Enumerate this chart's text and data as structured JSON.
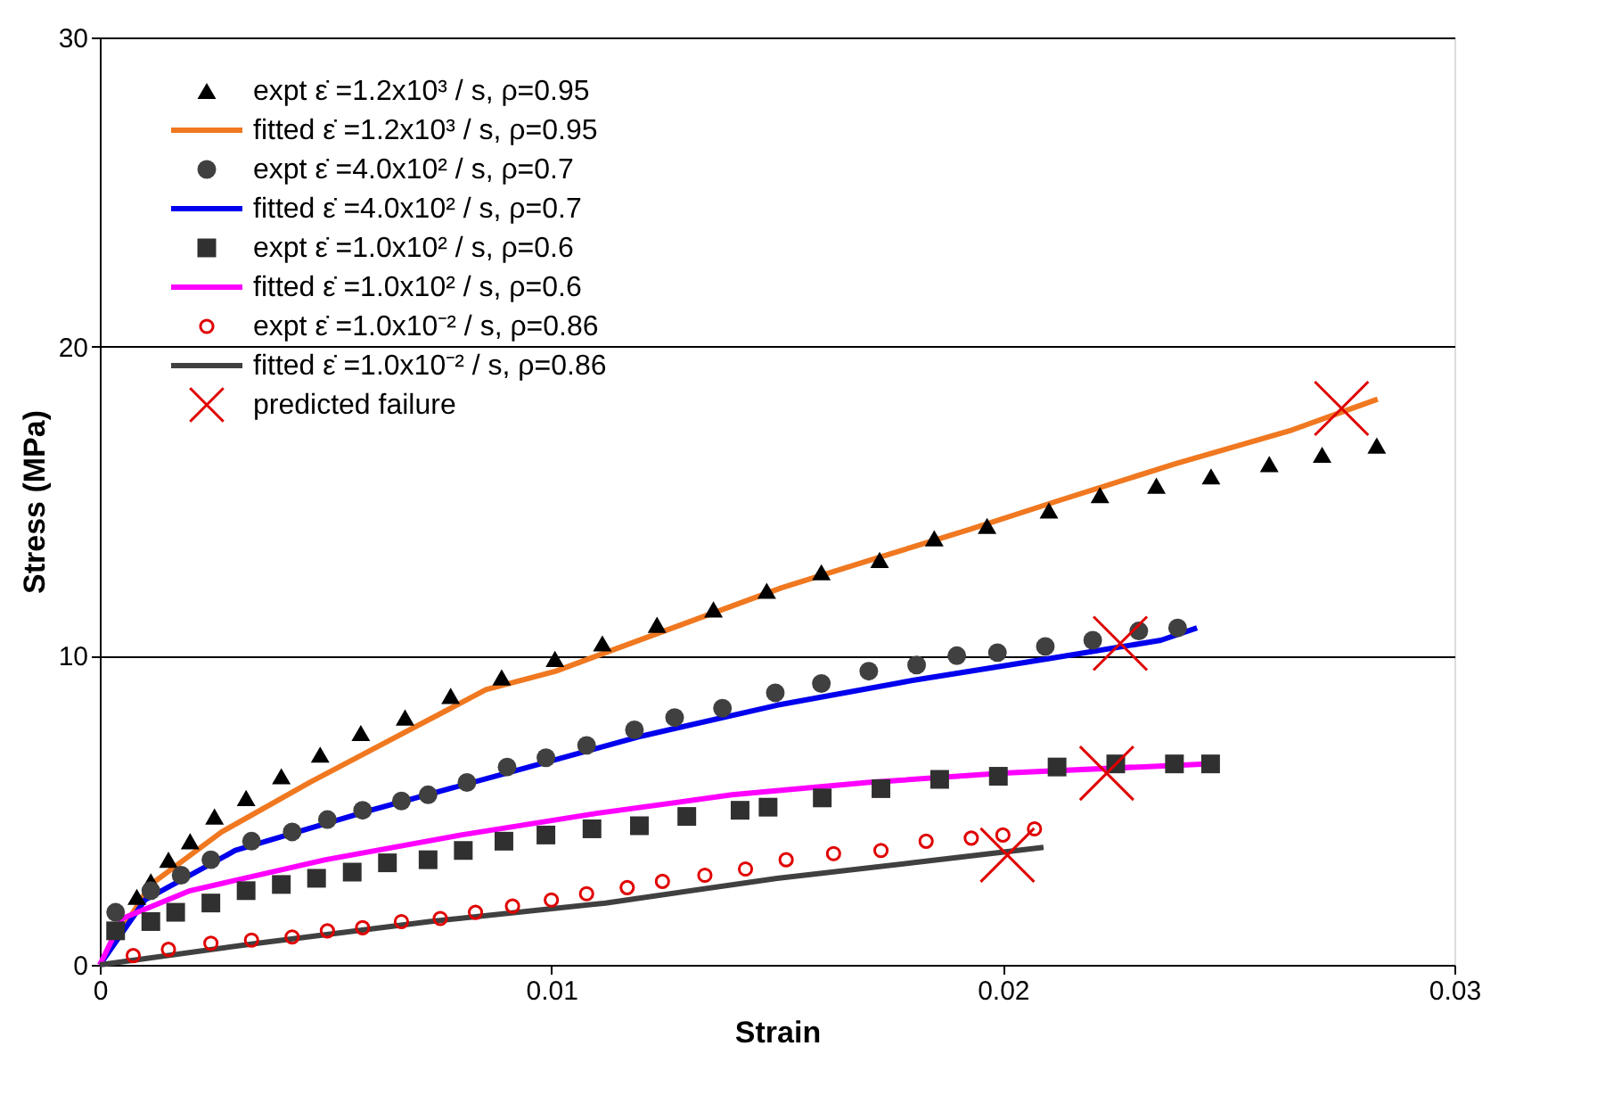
{
  "chart_data": {
    "type": "scatter",
    "xlabel": "Strain",
    "ylabel": "Stress (MPa)",
    "xlim": [
      0,
      0.03
    ],
    "xticks": [
      0,
      0.01,
      0.02,
      0.03
    ],
    "ylim": [
      0,
      30
    ],
    "yticks": [
      0,
      10,
      20,
      30
    ],
    "grid": "y",
    "legend": "top left",
    "series": [
      {
        "name": "expt  ε̇ =1.2x10³ / s, ρ=0.95",
        "marker": "triangle",
        "color": "#000000",
        "x": [
          0.00082,
          0.00113,
          0.00152,
          0.002,
          0.00254,
          0.00324,
          0.00402,
          0.00488,
          0.00578,
          0.00676,
          0.00777,
          0.0089,
          0.01008,
          0.01113,
          0.01234,
          0.01359,
          0.01477,
          0.01598,
          0.01727,
          0.01848,
          0.01965,
          0.02102,
          0.02215,
          0.0234,
          0.02461,
          0.0259,
          0.02707,
          0.02828
        ],
        "values": [
          2.2,
          2.7,
          3.4,
          4.0,
          4.8,
          5.4,
          6.1,
          6.8,
          7.5,
          8.0,
          8.7,
          9.3,
          9.9,
          10.4,
          11.0,
          11.5,
          12.1,
          12.7,
          13.1,
          13.8,
          14.2,
          14.7,
          15.2,
          15.5,
          15.8,
          16.2,
          16.5,
          16.8
        ]
      },
      {
        "name": "fitted  ε̇ =1.2x10³ / s, ρ=0.95",
        "type": "line",
        "line_style": "solid",
        "color": "#f07820",
        "x": [
          0,
          0.00113,
          0.0027,
          0.00465,
          0.0066,
          0.00855,
          0.0101,
          0.0112,
          0.0125,
          0.0151,
          0.0173,
          0.0193,
          0.0212,
          0.0238,
          0.0264,
          0.0283
        ],
        "values": [
          0,
          2.6,
          4.3,
          5.9,
          7.4,
          8.9,
          9.5,
          10.1,
          10.8,
          12.2,
          13.2,
          14.1,
          15.0,
          16.2,
          17.3,
          18.3
        ]
      },
      {
        "name": "expt  ε̇ =4.0x10² / s, ρ=0.7",
        "marker": "circle",
        "color": "#404040",
        "x": [
          0.00035,
          0.00113,
          0.0018,
          0.00246,
          0.00336,
          0.00426,
          0.00504,
          0.00582,
          0.00668,
          0.00727,
          0.00813,
          0.00902,
          0.00988,
          0.01078,
          0.01184,
          0.01273,
          0.01379,
          0.01496,
          0.01598,
          0.01703,
          0.01809,
          0.01898,
          0.01988,
          0.02094,
          0.02199,
          0.02301,
          0.02387
        ],
        "values": [
          1.7,
          2.4,
          2.9,
          3.4,
          4.0,
          4.3,
          4.7,
          5.0,
          5.3,
          5.5,
          5.9,
          6.4,
          6.7,
          7.1,
          7.6,
          8.0,
          8.3,
          8.8,
          9.1,
          9.5,
          9.7,
          10.0,
          10.1,
          10.3,
          10.5,
          10.8,
          10.9
        ]
      },
      {
        "name": "fitted  ε̇ =4.0x10² / s, ρ=0.7",
        "type": "line",
        "line_style": "solid",
        "color": "#0000ee",
        "x": [
          0,
          0.001,
          0.003,
          0.006,
          0.009,
          0.012,
          0.015,
          0.018,
          0.021,
          0.0235,
          0.0243
        ],
        "values": [
          0,
          2.1,
          3.7,
          5.0,
          6.2,
          7.4,
          8.4,
          9.2,
          9.9,
          10.5,
          10.9
        ]
      },
      {
        "name": "expt  ε̇ =1.0x10² / s, ρ=0.6",
        "marker": "square",
        "color": "#303030",
        "x": [
          0.00035,
          0.00113,
          0.00168,
          0.00246,
          0.00324,
          0.00402,
          0.0048,
          0.00559,
          0.00637,
          0.00727,
          0.00805,
          0.00895,
          0.00988,
          0.0109,
          0.01195,
          0.013,
          0.01418,
          0.0148,
          0.016,
          0.0173,
          0.0186,
          0.0199,
          0.0212,
          0.0225,
          0.0238,
          0.0246
        ],
        "values": [
          1.1,
          1.4,
          1.7,
          2.0,
          2.4,
          2.6,
          2.8,
          3.0,
          3.3,
          3.4,
          3.7,
          4.0,
          4.2,
          4.4,
          4.5,
          4.8,
          5.0,
          5.1,
          5.4,
          5.7,
          6.0,
          6.1,
          6.4,
          6.5,
          6.5,
          6.5
        ]
      },
      {
        "name": "fitted  ε̇ =1.0x10² / s, ρ=0.6",
        "type": "line",
        "line_style": "solid",
        "color": "#ff00ff",
        "x": [
          0,
          0.0005,
          0.002,
          0.005,
          0.008,
          0.011,
          0.014,
          0.017,
          0.02,
          0.023,
          0.0245
        ],
        "values": [
          0,
          1.5,
          2.4,
          3.4,
          4.2,
          4.9,
          5.5,
          5.9,
          6.2,
          6.4,
          6.5
        ]
      },
      {
        "name": "expt  ε̇ =1.0x10⁻² / s, ρ=0.86",
        "marker": "circle_open",
        "color": "#e00000",
        "x": [
          0.00074,
          0.00152,
          0.00246,
          0.00336,
          0.00426,
          0.00504,
          0.00582,
          0.00668,
          0.00754,
          0.00832,
          0.00914,
          0.01,
          0.01078,
          0.01168,
          0.01246,
          0.0134,
          0.0143,
          0.0152,
          0.01625,
          0.0173,
          0.0183,
          0.0193,
          0.02,
          0.0207
        ],
        "values": [
          0.3,
          0.5,
          0.7,
          0.8,
          0.9,
          1.1,
          1.2,
          1.4,
          1.5,
          1.7,
          1.9,
          2.1,
          2.3,
          2.5,
          2.7,
          2.9,
          3.1,
          3.4,
          3.6,
          3.7,
          4.0,
          4.1,
          4.2,
          4.4
        ]
      },
      {
        "name": "fitted  ε̇ =1.0x10⁻² / s, ρ=0.86",
        "type": "line",
        "line_style": "solid",
        "color": "#404040",
        "x": [
          0,
          0.0035,
          0.0073,
          0.0112,
          0.015,
          0.018,
          0.0209
        ],
        "values": [
          0,
          0.7,
          1.4,
          2.0,
          2.8,
          3.3,
          3.8
        ]
      },
      {
        "name": "predicted failure",
        "marker": "cross",
        "color": "#e00000",
        "x": [
          0.0275,
          0.0226,
          0.0223,
          0.0201
        ],
        "values": [
          18.0,
          10.4,
          6.2,
          3.55
        ]
      }
    ]
  }
}
